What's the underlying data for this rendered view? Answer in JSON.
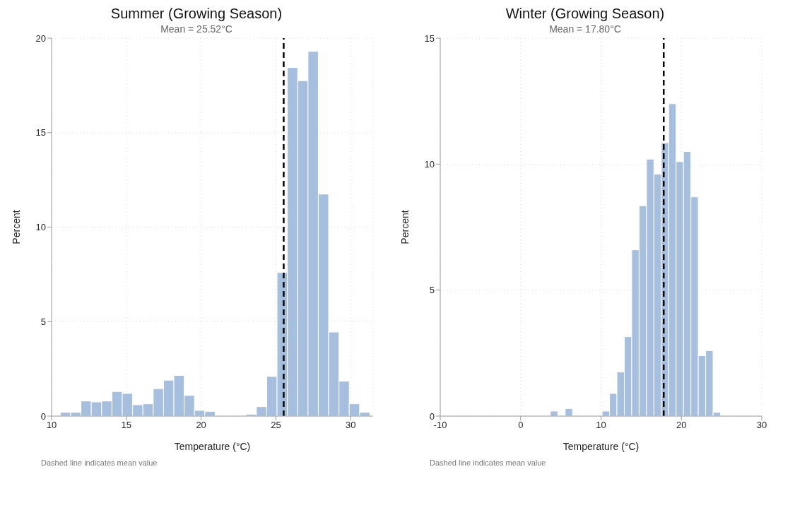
{
  "chart_data": [
    {
      "type": "histogram",
      "title": "Summer (Growing Season)",
      "subtitle": "Mean = 25.52°C",
      "xlabel": "Temperature (°C)",
      "ylabel": "Percent",
      "color": "#a7bfdf",
      "bins": [
        10.6,
        11.29,
        11.98,
        12.67,
        13.36,
        14.05,
        14.74,
        15.43,
        16.12,
        16.81,
        17.5,
        18.19,
        18.88,
        19.57,
        20.26,
        20.95,
        21.64,
        22.33,
        23.02,
        23.71,
        24.4,
        25.09,
        25.78,
        26.47,
        27.16,
        27.85,
        28.54,
        29.23,
        29.92,
        30.61,
        31.3
      ],
      "values": [
        0.2,
        0.2,
        0.8,
        0.75,
        0.8,
        1.3,
        1.2,
        0.6,
        0.65,
        1.45,
        1.9,
        2.15,
        1.1,
        0.3,
        0.25,
        0,
        null,
        null,
        0.1,
        0.5,
        2.1,
        7.6,
        18.45,
        17.75,
        19.3,
        11.75,
        4.45,
        1.85,
        0.65,
        0.2
      ],
      "xlim": [
        10,
        31.5
      ],
      "xticks": [
        10,
        15,
        20,
        25,
        30
      ],
      "ylim": [
        0,
        20
      ],
      "yticks": [
        0,
        5,
        10,
        15,
        20
      ],
      "grid": true,
      "ref_lines": [
        {
          "axis": "x",
          "value": 25.52,
          "color": "#000000",
          "line_style": "dashed"
        }
      ],
      "annotations": [
        "Dashed line indicates mean value"
      ]
    },
    {
      "type": "histogram",
      "title": "Winter (Growing Season)",
      "subtitle": "Mean = 17.80°C",
      "xlabel": "Temperature (°C)",
      "ylabel": "Percent",
      "color": "#a7bfdf",
      "bins": [
        -1.8,
        -0.88,
        0.04,
        0.96,
        1.88,
        2.8,
        3.72,
        4.64,
        5.56,
        6.48,
        7.4,
        8.32,
        9.24,
        10.16,
        11.08,
        12.0,
        12.92,
        13.84,
        14.76,
        15.68,
        16.6,
        17.52,
        18.44,
        19.36,
        20.28,
        21.2,
        22.12,
        23.04,
        23.96,
        24.88
      ],
      "values": [
        null,
        null,
        0,
        0,
        0,
        0,
        0.2,
        0,
        0.3,
        0,
        null,
        0,
        null,
        0.2,
        0.9,
        1.75,
        3.15,
        6.6,
        8.35,
        10.2,
        9.6,
        10.85,
        12.4,
        10.1,
        10.5,
        8.7,
        2.4,
        2.6,
        0.15
      ],
      "xlim": [
        -10,
        30
      ],
      "xticks": [
        -10,
        0,
        10,
        20,
        30
      ],
      "ylim": [
        0,
        15
      ],
      "yticks": [
        0,
        5,
        10,
        15
      ],
      "grid": true,
      "ref_lines": [
        {
          "axis": "x",
          "value": 17.8,
          "color": "#000000",
          "line_style": "dashed"
        }
      ],
      "annotations": [
        "Dashed line indicates mean value"
      ]
    }
  ]
}
